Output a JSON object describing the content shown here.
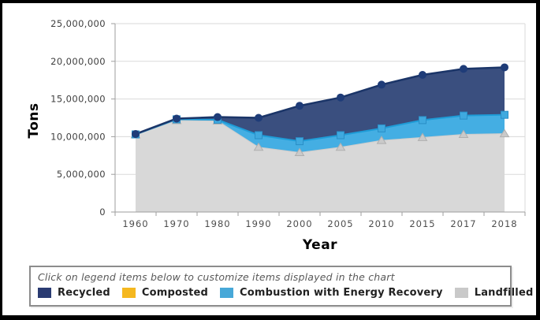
{
  "window": {
    "background": "#ffffff",
    "border_color": "#000000"
  },
  "chart_data": {
    "type": "area",
    "stacked": true,
    "title": "",
    "xlabel": "Year",
    "ylabel": "Tons",
    "ylim": [
      0,
      25000000
    ],
    "ytick_labels": [
      "0",
      "5,000,000",
      "10,000,000",
      "15,000,000",
      "20,000,000",
      "25,000,000"
    ],
    "categories": [
      "1960",
      "1970",
      "1980",
      "1990",
      "2000",
      "2005",
      "2010",
      "2015",
      "2017",
      "2018"
    ],
    "grid": "horizontal",
    "legend_position": "bottom-panel",
    "series": [
      {
        "name": "Landfilled",
        "marker": "triangle",
        "area_color": "#d8d8d8",
        "line_color": "#cccccc",
        "line_width": 1,
        "marker_fill": "#cacaca",
        "marker_stroke": "#afafaf",
        "values": [
          10250000,
          12150000,
          12100000,
          8600000,
          7900000,
          8600000,
          9500000,
          9900000,
          10300000,
          10400000
        ]
      },
      {
        "name": "Combustion with Energy Recovery",
        "marker": "square",
        "area_color": "#44aee3",
        "line_color": "#1e9cd7",
        "line_width": 2,
        "marker_fill": "#3fa9df",
        "marker_stroke": "#2a8fc7",
        "values": [
          50000,
          150000,
          150000,
          1600000,
          1500000,
          1600000,
          1600000,
          2300000,
          2500000,
          2500000
        ]
      },
      {
        "name": "Composted",
        "marker": "none",
        "area_color": "#f5b81f",
        "line_color": "#f5b81f",
        "line_width": 1,
        "marker_fill": "#f5b81f",
        "marker_stroke": "#e0a410",
        "values": [
          0,
          0,
          0,
          0,
          0,
          0,
          0,
          0,
          0,
          0
        ]
      },
      {
        "name": "Recycled",
        "marker": "circle",
        "area_color": "#3a4f7f",
        "line_color": "#1b3568",
        "line_width": 2.5,
        "marker_fill": "#1f3c78",
        "marker_stroke": "#1f3c78",
        "values": [
          50000,
          100000,
          350000,
          2300000,
          4700000,
          5000000,
          5800000,
          6000000,
          6200000,
          6300000
        ]
      }
    ],
    "stack_totals": [
      10350000,
      12400000,
      12600000,
      12500000,
      14100000,
      15200000,
      16900000,
      18200000,
      19000000,
      19200000
    ]
  },
  "axes_style": {
    "tick_label_color": "#4d4d4d",
    "gridline_color": "#dadada",
    "axis_line_color": "#9e9e9e"
  },
  "legend": {
    "hint": "Click on legend items below to customize items displayed in the chart",
    "items": [
      {
        "label": "Recycled",
        "color": "#2a3b72"
      },
      {
        "label": "Composted",
        "color": "#f5b81f"
      },
      {
        "label": "Combustion with Energy Recovery",
        "color": "#47a8d8"
      },
      {
        "label": "Landfilled",
        "color": "#c9c9c9"
      }
    ]
  }
}
